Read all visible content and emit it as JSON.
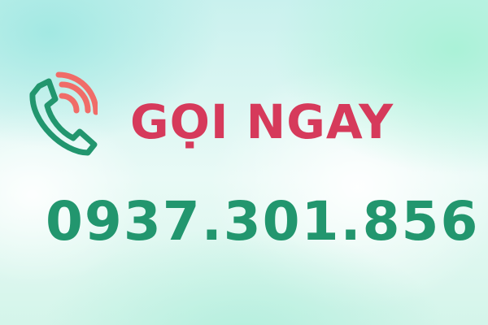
{
  "banner": {
    "title": "GỌI NGAY",
    "phone_number": "0937.301.856"
  },
  "icons": {
    "phone": "phone-ringing-icon"
  },
  "colors": {
    "title": "#d63a5b",
    "phone_number": "#22966e",
    "handset": "#22966e",
    "signal_waves": "#f06c68"
  }
}
